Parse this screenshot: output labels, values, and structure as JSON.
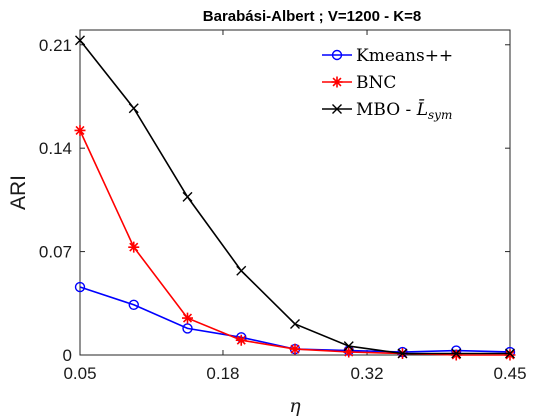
{
  "chart_data": {
    "type": "line",
    "title": "Barabási-Albert ; V=1200 - K=8",
    "xlabel": "η",
    "ylabel": "ARI",
    "xlim": [
      0.05,
      0.45
    ],
    "ylim": [
      0,
      0.22
    ],
    "xticks": [
      "0.05",
      "0.18",
      "0.32",
      "0.45"
    ],
    "xtick_values": [
      0.05,
      0.183,
      0.317,
      0.45
    ],
    "yticks": [
      "0",
      "0.07",
      "0.14",
      "0.21"
    ],
    "ytick_values": [
      0,
      0.07,
      0.14,
      0.21
    ],
    "legend_position": "top-right",
    "grid": false,
    "series": [
      {
        "name": "Kmeans++",
        "color": "#0000ff",
        "marker": "circle",
        "x": [
          0.05,
          0.1,
          0.15,
          0.2,
          0.25,
          0.3,
          0.35,
          0.4,
          0.45
        ],
        "y": [
          0.046,
          0.034,
          0.018,
          0.012,
          0.004,
          0.003,
          0.002,
          0.003,
          0.002
        ]
      },
      {
        "name": "BNC",
        "color": "#ff0000",
        "marker": "star",
        "x": [
          0.05,
          0.1,
          0.15,
          0.2,
          0.25,
          0.3,
          0.35,
          0.4,
          0.45
        ],
        "y": [
          0.152,
          0.073,
          0.025,
          0.01,
          0.004,
          0.002,
          0.001,
          0.0,
          0.0
        ]
      },
      {
        "name": "MBO - ",
        "name_math": "L̄",
        "name_sub": "sym",
        "color": "#000000",
        "marker": "x",
        "x": [
          0.05,
          0.1,
          0.15,
          0.2,
          0.25,
          0.3,
          0.35,
          0.4,
          0.45
        ],
        "y": [
          0.213,
          0.167,
          0.107,
          0.057,
          0.021,
          0.006,
          0.001,
          0.001,
          0.001
        ]
      }
    ]
  }
}
